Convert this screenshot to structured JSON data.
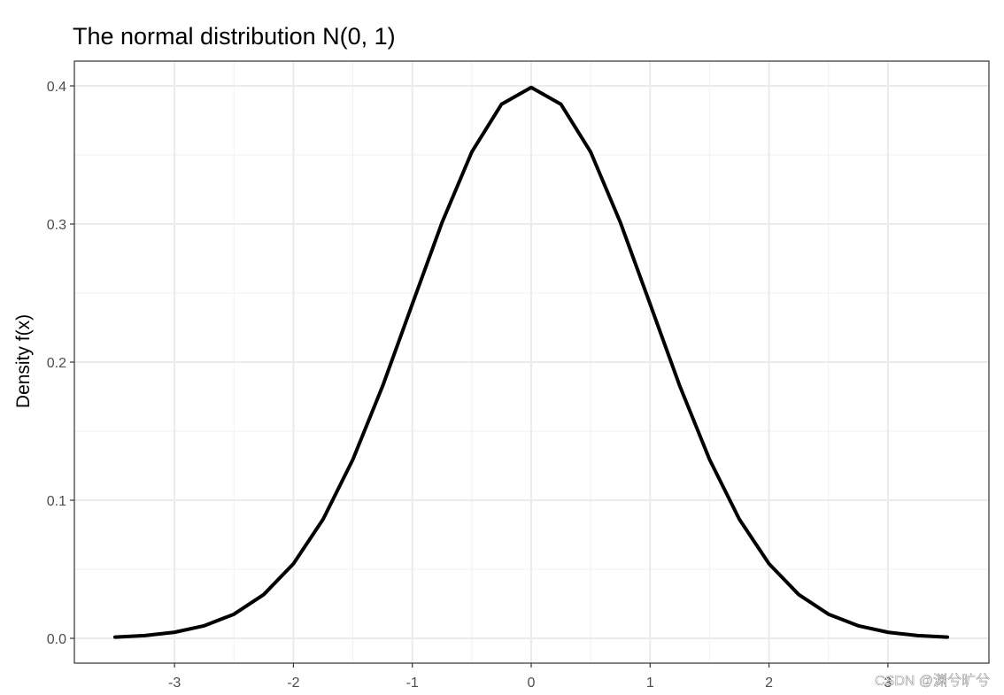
{
  "chart_data": {
    "type": "line",
    "title": "The normal distribution N(0, 1)",
    "xlabel": "",
    "ylabel": "Density f(x)",
    "xlim": [
      -3.5,
      3.5
    ],
    "ylim": [
      0,
      0.4
    ],
    "x_ticks": [
      -3,
      -2,
      -1,
      0,
      1,
      2,
      3
    ],
    "x_tick_labels": [
      "-3",
      "-2",
      "-1",
      "0",
      "1",
      "2",
      "3"
    ],
    "y_ticks": [
      0.0,
      0.1,
      0.2,
      0.3,
      0.4
    ],
    "y_tick_labels": [
      "0.0",
      "0.1",
      "0.2",
      "0.3",
      "0.4"
    ],
    "grid": true,
    "legend": "none",
    "series": [
      {
        "color": "#000000",
        "x": [
          -3.5,
          -3.25,
          -3.0,
          -2.75,
          -2.5,
          -2.25,
          -2.0,
          -1.75,
          -1.5,
          -1.25,
          -1.0,
          -0.75,
          -0.5,
          -0.25,
          0.0,
          0.25,
          0.5,
          0.75,
          1.0,
          1.25,
          1.5,
          1.75,
          2.0,
          2.25,
          2.5,
          2.75,
          3.0,
          3.25,
          3.5
        ],
        "y": [
          0.0009,
          0.002,
          0.0044,
          0.0091,
          0.0175,
          0.0317,
          0.054,
          0.0863,
          0.1295,
          0.1826,
          0.242,
          0.3011,
          0.3521,
          0.3867,
          0.3989,
          0.3867,
          0.3521,
          0.3011,
          0.242,
          0.1826,
          0.1295,
          0.0863,
          0.054,
          0.0317,
          0.0175,
          0.0091,
          0.0044,
          0.002,
          0.0009
        ]
      }
    ]
  },
  "watermark": "CSDN @渊兮旷兮"
}
